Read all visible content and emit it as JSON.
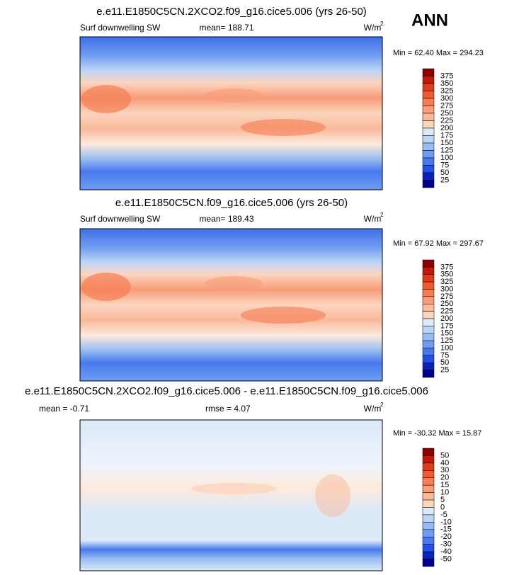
{
  "season": "ANN",
  "panels": [
    {
      "title": "e.e11.E1850C5CN.2XCO2.f09_g16.cice5.006 (yrs 26-50)",
      "left_label": "Surf downwelling SW",
      "center_label": "mean= 188.71",
      "units": "W/m",
      "units_sup": "2",
      "minmax": "Min =  62.40 Max = 294.23",
      "colorbar": {
        "labels": [
          375,
          350,
          325,
          300,
          275,
          250,
          225,
          200,
          175,
          150,
          125,
          100,
          75,
          50,
          25
        ],
        "colors": [
          "#8c0000",
          "#c01a0a",
          "#de3b1c",
          "#ef5a2e",
          "#f57d54",
          "#f89c78",
          "#f9b99b",
          "#fbd5be",
          "#fdeadd",
          "#dce9f9",
          "#bcd5f6",
          "#98bcf2",
          "#6f9cf0",
          "#4779ee",
          "#2350e6",
          "#0a22b8",
          "#00008c"
        ]
      }
    },
    {
      "title": "e.e11.E1850C5CN.f09_g16.cice5.006 (yrs 26-50)",
      "left_label": "Surf downwelling SW",
      "center_label": "mean= 189.43",
      "units": "W/m",
      "units_sup": "2",
      "minmax": "Min =  67.92 Max = 297.67",
      "colorbar": {
        "labels": [
          375,
          350,
          325,
          300,
          275,
          250,
          225,
          200,
          175,
          150,
          125,
          100,
          75,
          50,
          25
        ],
        "colors": [
          "#8c0000",
          "#c01a0a",
          "#de3b1c",
          "#ef5a2e",
          "#f57d54",
          "#f89c78",
          "#f9b99b",
          "#fbd5be",
          "#fdeadd",
          "#dce9f9",
          "#bcd5f6",
          "#98bcf2",
          "#6f9cf0",
          "#4779ee",
          "#2350e6",
          "#0a22b8",
          "#00008c"
        ]
      }
    },
    {
      "title": "e.e11.E1850C5CN.2XCO2.f09_g16.cice5.006 - e.e11.E1850C5CN.f09_g16.cice5.006",
      "left_label": "mean =  -0.71",
      "center_label": "rmse =  4.07",
      "units": "W/m",
      "units_sup": "2",
      "minmax": "Min = -30.32 Max =  15.87",
      "colorbar": {
        "labels": [
          50,
          40,
          30,
          20,
          15,
          10,
          5,
          0,
          -5,
          -10,
          -15,
          -20,
          -30,
          -40,
          -50
        ],
        "colors": [
          "#8c0000",
          "#c01a0a",
          "#de3b1c",
          "#ef5a2e",
          "#f57d54",
          "#f89c78",
          "#f9b99b",
          "#fbd5be",
          "#fdeadd",
          "#dce9f9",
          "#bcd5f6",
          "#98bcf2",
          "#6f9cf0",
          "#4779ee",
          "#2350e6",
          "#0a22b8",
          "#00008c"
        ]
      }
    }
  ]
}
